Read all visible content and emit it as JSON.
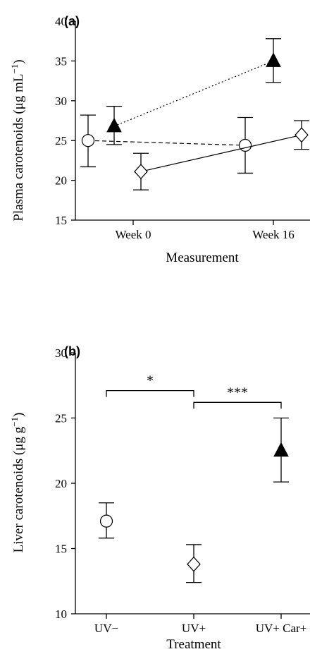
{
  "chart_data": [
    {
      "type": "line",
      "panel_label": "(a)",
      "xlabel": "Measurement",
      "ylabel": "Plasma carotenoids (μg mL",
      "ylabel_sup": "−1",
      "ylabel_close": ")",
      "categories": [
        "Week 0",
        "Week 16"
      ],
      "ylim": [
        15,
        40
      ],
      "yticks": [
        "15",
        "20",
        "25",
        "30",
        "35",
        "40"
      ],
      "series": [
        {
          "marker": "circle-open",
          "linestyle": "dashed",
          "x": [
            "Week 0",
            "Week 16"
          ],
          "values": [
            25.0,
            24.4
          ],
          "err_low": [
            21.7,
            20.9
          ],
          "err_high": [
            28.2,
            27.9
          ]
        },
        {
          "marker": "diamond-open",
          "linestyle": "solid",
          "x": [
            "Week 0",
            "Week 16"
          ],
          "values": [
            21.1,
            25.7
          ],
          "err_low": [
            18.8,
            23.9
          ],
          "err_high": [
            23.4,
            27.5
          ]
        },
        {
          "marker": "triangle-filled",
          "linestyle": "dotted",
          "x": [
            "Week 0",
            "Week 16"
          ],
          "values": [
            26.8,
            35.0
          ],
          "err_low": [
            24.5,
            32.3
          ],
          "err_high": [
            29.3,
            37.8
          ]
        }
      ]
    },
    {
      "type": "scatter",
      "panel_label": "(b)",
      "xlabel": "Treatment",
      "ylabel": "Liver carotenoids (μg g",
      "ylabel_sup": "−1",
      "ylabel_close": ")",
      "categories": [
        "UV−",
        "UV+",
        "UV+ Car+"
      ],
      "ylim": [
        10,
        30
      ],
      "yticks": [
        "10",
        "15",
        "20",
        "25",
        "30"
      ],
      "series": [
        {
          "marker": "circle-open",
          "x": [
            "UV−"
          ],
          "values": [
            17.1
          ],
          "err_low": [
            15.8
          ],
          "err_high": [
            18.5
          ]
        },
        {
          "marker": "diamond-open",
          "x": [
            "UV+"
          ],
          "values": [
            13.8
          ],
          "err_low": [
            12.4
          ],
          "err_high": [
            15.3
          ]
        },
        {
          "marker": "triangle-filled",
          "x": [
            "UV+ Car+"
          ],
          "values": [
            22.5
          ],
          "err_low": [
            20.1
          ],
          "err_high": [
            25.0
          ]
        }
      ],
      "annotations": [
        {
          "label": "*",
          "from": "UV−",
          "to": "UV+",
          "y": 27.1
        },
        {
          "label": "***",
          "from": "UV+",
          "to": "UV+ Car+",
          "y": 26.2
        }
      ]
    }
  ]
}
